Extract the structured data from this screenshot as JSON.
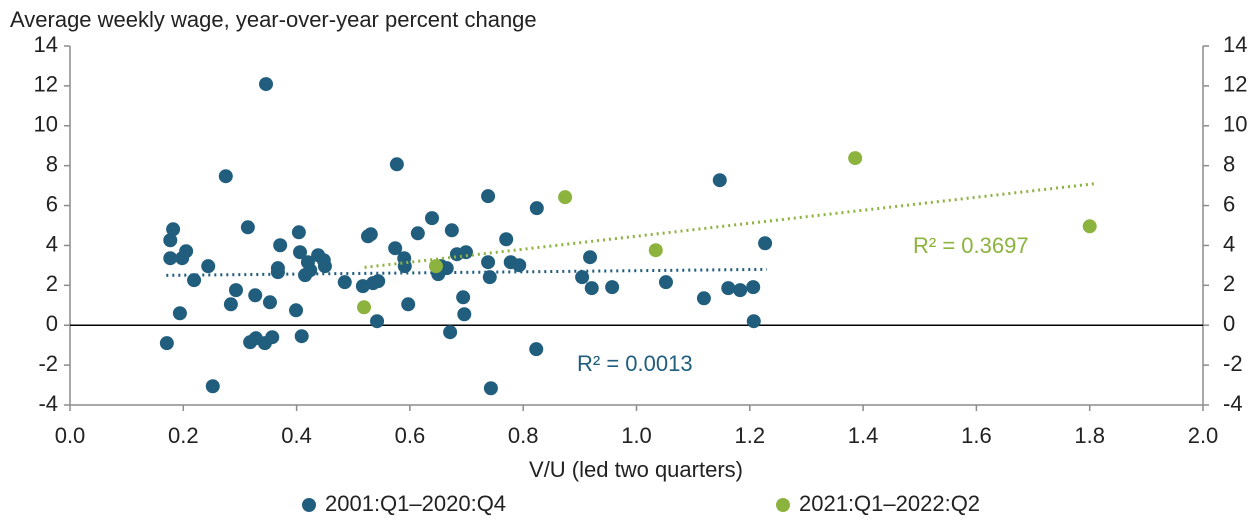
{
  "chart_data": {
    "type": "scatter",
    "title": "Average weekly wage, year-over-year percent change",
    "x_label": "V/U (led two quarters)",
    "xlim": [
      0,
      2
    ],
    "xticks": [
      {
        "value": 0,
        "label": "0.0"
      },
      {
        "value": 0.2,
        "label": "0.2"
      },
      {
        "value": 0.4,
        "label": "0.4"
      },
      {
        "value": 0.6,
        "label": "0.6"
      },
      {
        "value": 0.8,
        "label": "0.8"
      },
      {
        "value": 1.0,
        "label": "1.0"
      },
      {
        "value": 1.2,
        "label": "1.2"
      },
      {
        "value": 1.4,
        "label": "1.4"
      },
      {
        "value": 1.6,
        "label": "1.6"
      },
      {
        "value": 1.8,
        "label": "1.8"
      },
      {
        "value": 2.0,
        "label": "2.0"
      }
    ],
    "ylim": [
      -4,
      14
    ],
    "yticks": [
      -4,
      -2,
      0,
      2,
      4,
      6,
      8,
      10,
      12,
      14
    ],
    "y2lim": [
      -4,
      14
    ],
    "y2ticks": [
      -4,
      -2,
      0,
      2,
      4,
      6,
      8,
      10,
      12,
      14
    ],
    "zero_line": true,
    "series": [
      {
        "name": "2001:Q1–2020:Q4",
        "color": "#215e7e",
        "x": [
          0.171,
          0.177,
          0.182,
          0.177,
          0.198,
          0.205,
          0.194,
          0.219,
          0.244,
          0.252,
          0.275,
          0.284,
          0.293,
          0.314,
          0.318,
          0.327,
          0.328,
          0.346,
          0.344,
          0.353,
          0.357,
          0.367,
          0.367,
          0.371,
          0.399,
          0.404,
          0.406,
          0.409,
          0.415,
          0.42,
          0.424,
          0.438,
          0.448,
          0.45,
          0.485,
          0.517,
          0.526,
          0.531,
          0.535,
          0.544,
          0.542,
          0.577,
          0.574,
          0.59,
          0.591,
          0.597,
          0.614,
          0.639,
          0.65,
          0.655,
          0.665,
          0.671,
          0.674,
          0.683,
          0.694,
          0.696,
          0.699,
          0.738,
          0.738,
          0.741,
          0.743,
          0.77,
          0.778,
          0.793,
          0.823,
          0.824,
          0.904,
          0.918,
          0.921,
          0.957,
          1.052,
          1.119,
          1.147,
          1.162,
          1.183,
          1.206,
          1.207,
          1.227
        ],
        "values": [
          -0.9,
          4.26,
          4.81,
          3.36,
          3.36,
          3.71,
          0.6,
          2.26,
          2.96,
          -3.06,
          7.47,
          1.05,
          1.76,
          4.91,
          -0.85,
          1.5,
          -0.65,
          12.09,
          -0.9,
          1.15,
          -0.6,
          2.86,
          2.66,
          4.01,
          0.75,
          4.66,
          3.66,
          -0.55,
          2.51,
          3.16,
          2.76,
          3.51,
          3.26,
          2.96,
          2.16,
          1.96,
          4.46,
          4.56,
          2.11,
          2.21,
          0.2,
          8.07,
          3.86,
          3.36,
          2.96,
          1.05,
          4.61,
          5.37,
          2.56,
          2.96,
          2.86,
          -0.35,
          4.76,
          3.56,
          1.4,
          0.55,
          3.66,
          6.47,
          3.16,
          2.41,
          -3.16,
          4.31,
          3.16,
          3.01,
          -1.2,
          5.87,
          2.41,
          3.41,
          1.86,
          1.91,
          2.16,
          1.35,
          7.27,
          1.86,
          1.76,
          1.91,
          0.2,
          4.11
        ],
        "trend": {
          "x": [
            0.17,
            1.23
          ],
          "y": [
            2.5,
            2.8
          ],
          "label": "R² = 0.0013"
        }
      },
      {
        "name": "2021:Q1–2022:Q2",
        "color": "#8db33f",
        "x": [
          0.519,
          0.646,
          0.874,
          1.034,
          1.386,
          1.8
        ],
        "values": [
          0.9,
          2.96,
          6.42,
          3.76,
          8.38,
          4.96
        ],
        "trend": {
          "x": [
            0.52,
            1.81
          ],
          "y": [
            2.9,
            7.1
          ],
          "label": "R² = 0.3697"
        }
      }
    ]
  }
}
